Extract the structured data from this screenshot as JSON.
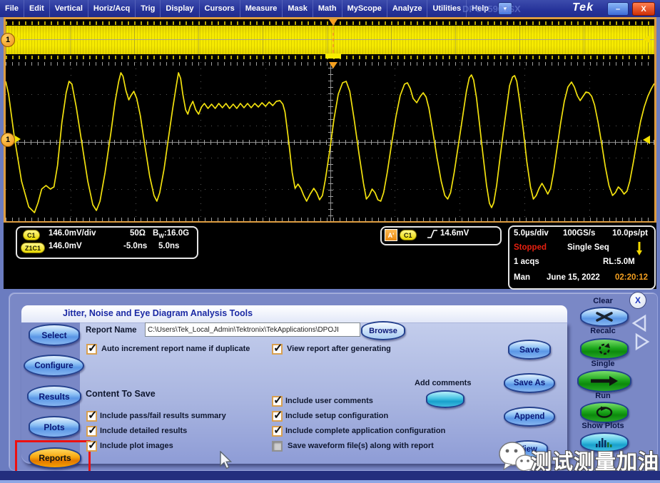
{
  "window": {
    "model": "DPO75902SX",
    "brand": "Tek",
    "minimize": "–",
    "close": "X"
  },
  "menu": {
    "items": [
      "File",
      "Edit",
      "Vertical",
      "Horiz/Acq",
      "Trig",
      "Display",
      "Cursors",
      "Measure",
      "Mask",
      "Math",
      "MyScope",
      "Analyze",
      "Utilities",
      "Help"
    ],
    "dropdown": "▼"
  },
  "waveform": {
    "channel_badge": "1",
    "trace_color": "#f2e10e",
    "points": [
      [
        0,
        27
      ],
      [
        4,
        45
      ],
      [
        12,
        105
      ],
      [
        22,
        167
      ],
      [
        32,
        203
      ],
      [
        40,
        211
      ],
      [
        45,
        197
      ],
      [
        50,
        178
      ],
      [
        56,
        173
      ],
      [
        62,
        178
      ],
      [
        67,
        175
      ],
      [
        72,
        145
      ],
      [
        78,
        85
      ],
      [
        84,
        43
      ],
      [
        88,
        27
      ],
      [
        92,
        31
      ],
      [
        98,
        63
      ],
      [
        106,
        115
      ],
      [
        114,
        167
      ],
      [
        121,
        200
      ],
      [
        126,
        208
      ],
      [
        131,
        195
      ],
      [
        138,
        155
      ],
      [
        146,
        100
      ],
      [
        152,
        55
      ],
      [
        157,
        27
      ],
      [
        160,
        15
      ],
      [
        163,
        20
      ],
      [
        167,
        40
      ],
      [
        171,
        53
      ],
      [
        174,
        47
      ],
      [
        178,
        41
      ],
      [
        182,
        51
      ],
      [
        187,
        75
      ],
      [
        193,
        115
      ],
      [
        200,
        160
      ],
      [
        206,
        187
      ],
      [
        210,
        195
      ],
      [
        214,
        183
      ],
      [
        220,
        150
      ],
      [
        226,
        107
      ],
      [
        232,
        65
      ],
      [
        237,
        33
      ],
      [
        240,
        15
      ],
      [
        243,
        23
      ],
      [
        246,
        45
      ],
      [
        250,
        67
      ],
      [
        253,
        73
      ],
      [
        256,
        63
      ],
      [
        260,
        55
      ],
      [
        264,
        67
      ],
      [
        268,
        73
      ],
      [
        272,
        63
      ],
      [
        276,
        58
      ],
      [
        281,
        65
      ],
      [
        286,
        59
      ],
      [
        291,
        65
      ],
      [
        296,
        58
      ],
      [
        301,
        64
      ],
      [
        306,
        58
      ],
      [
        311,
        65
      ],
      [
        316,
        59
      ],
      [
        321,
        65
      ],
      [
        326,
        58
      ],
      [
        331,
        64
      ],
      [
        336,
        58
      ],
      [
        341,
        64
      ],
      [
        346,
        58
      ],
      [
        351,
        63
      ],
      [
        356,
        57
      ],
      [
        361,
        62
      ],
      [
        366,
        56
      ],
      [
        371,
        61
      ],
      [
        376,
        55
      ],
      [
        381,
        54
      ],
      [
        385,
        59
      ],
      [
        388,
        70
      ],
      [
        393,
        110
      ],
      [
        398,
        155
      ],
      [
        402,
        177
      ],
      [
        406,
        171
      ],
      [
        410,
        177
      ],
      [
        414,
        187
      ],
      [
        418,
        195
      ],
      [
        423,
        185
      ],
      [
        428,
        177
      ],
      [
        432,
        183
      ],
      [
        436,
        193
      ],
      [
        440,
        187
      ],
      [
        444,
        165
      ],
      [
        450,
        125
      ],
      [
        456,
        80
      ],
      [
        462,
        45
      ],
      [
        468,
        29
      ],
      [
        473,
        27
      ],
      [
        478,
        41
      ],
      [
        484,
        80
      ],
      [
        491,
        130
      ],
      [
        497,
        170
      ],
      [
        501,
        192
      ],
      [
        505,
        187
      ],
      [
        509,
        178
      ],
      [
        513,
        183
      ],
      [
        517,
        193
      ],
      [
        521,
        195
      ],
      [
        525,
        183
      ],
      [
        530,
        155
      ],
      [
        536,
        115
      ],
      [
        542,
        77
      ],
      [
        548,
        47
      ],
      [
        554,
        31
      ],
      [
        558,
        29
      ],
      [
        562,
        37
      ],
      [
        566,
        51
      ],
      [
        571,
        57
      ],
      [
        576,
        48
      ],
      [
        580,
        43
      ],
      [
        584,
        49
      ],
      [
        588,
        65
      ],
      [
        593,
        95
      ],
      [
        599,
        133
      ],
      [
        605,
        167
      ],
      [
        610,
        187
      ],
      [
        614,
        192
      ],
      [
        618,
        183
      ],
      [
        623,
        155
      ],
      [
        629,
        115
      ],
      [
        635,
        75
      ],
      [
        640,
        41
      ],
      [
        644,
        22
      ],
      [
        647,
        18
      ],
      [
        650,
        25
      ],
      [
        654,
        50
      ],
      [
        658,
        85
      ],
      [
        663,
        130
      ],
      [
        668,
        173
      ],
      [
        672,
        198
      ],
      [
        675,
        204
      ],
      [
        678,
        197
      ],
      [
        682,
        173
      ],
      [
        686,
        140
      ],
      [
        691,
        100
      ],
      [
        696,
        63
      ],
      [
        700,
        33
      ],
      [
        704,
        21
      ],
      [
        707,
        19
      ],
      [
        710,
        27
      ],
      [
        714,
        55
      ],
      [
        719,
        95
      ],
      [
        724,
        140
      ],
      [
        729,
        175
      ],
      [
        733,
        192
      ],
      [
        737,
        187
      ],
      [
        741,
        177
      ],
      [
        745,
        170
      ],
      [
        749,
        177
      ],
      [
        753,
        185
      ],
      [
        757,
        177
      ],
      [
        761,
        155
      ],
      [
        766,
        120
      ],
      [
        771,
        85
      ],
      [
        776,
        55
      ],
      [
        781,
        35
      ],
      [
        786,
        28
      ],
      [
        790,
        35
      ],
      [
        794,
        47
      ],
      [
        798,
        54
      ],
      [
        802,
        48
      ],
      [
        806,
        42
      ],
      [
        810,
        43
      ],
      [
        814,
        48
      ],
      [
        818,
        60
      ],
      [
        823,
        85
      ],
      [
        828,
        115
      ],
      [
        833,
        147
      ],
      [
        838,
        173
      ],
      [
        843,
        187
      ],
      [
        847,
        183
      ],
      [
        851,
        175
      ],
      [
        855,
        179
      ],
      [
        859,
        185
      ],
      [
        863,
        181
      ],
      [
        867,
        167
      ],
      [
        872,
        140
      ],
      [
        877,
        110
      ],
      [
        882,
        83
      ],
      [
        887,
        63
      ],
      [
        892,
        48
      ],
      [
        897,
        37
      ],
      [
        901,
        30
      ]
    ]
  },
  "readouts": {
    "channel": {
      "badge": "C1",
      "scale": "146.0mV/div",
      "termination": "50Ω",
      "bw_prefix": "B",
      "bw_sub": "W",
      "bw_value": ":16.0G"
    },
    "zoom_ch": {
      "badge": "Z1C1",
      "offset": "146.0mV",
      "start": "-5.0ns",
      "end": "5.0ns"
    },
    "trigger": {
      "badge": "A'",
      "source": "C1",
      "level": "14.6mV"
    },
    "horiz": {
      "scale": "5.0µs/div",
      "rate": "100GS/s",
      "resolution": "10.0ps/pt"
    },
    "acq": {
      "status": "Stopped",
      "mode": "Single Seq",
      "count": "1 acqs",
      "record": "RL:5.0M",
      "trig_mode": "Man",
      "date": "June 15, 2022",
      "time": "02:20:12"
    }
  },
  "panel": {
    "title": "Jitter, Noise and Eye Diagram Analysis Tools",
    "nav": {
      "select": "Select",
      "configure": "Configure",
      "results": "Results",
      "plots": "Plots",
      "reports": "Reports"
    },
    "report": {
      "label": "Report Name",
      "path": "C:\\Users\\Tek_Local_Admin\\Tektronix\\TekApplications\\DPOJI",
      "browse": "Browse"
    },
    "options": {
      "auto_increment": {
        "label": "Auto increment report name if duplicate",
        "checked": true
      },
      "view_after": {
        "label": "View report after generating",
        "checked": true
      }
    },
    "content_heading": "Content To Save",
    "content_left": [
      {
        "label": "Include pass/fail results summary",
        "checked": true
      },
      {
        "label": "Include detailed results",
        "checked": true
      },
      {
        "label": "Include plot images",
        "checked": true
      }
    ],
    "content_right": [
      {
        "label": "Include user comments",
        "checked": true
      },
      {
        "label": "Include setup configuration",
        "checked": true
      },
      {
        "label": "Include complete application configuration",
        "checked": true
      },
      {
        "label": "Save waveform file(s) along with report",
        "checked": false
      }
    ],
    "add_comments": "Add comments",
    "actions": {
      "save": "Save",
      "save_as": "Save As",
      "append": "Append",
      "view": "View"
    },
    "controls": {
      "clear": "Clear",
      "recalc": "Recalc",
      "single": "Single",
      "run": "Run",
      "show_plots": "Show Plots"
    }
  },
  "watermark": {
    "text": "测试测量加油站"
  }
}
